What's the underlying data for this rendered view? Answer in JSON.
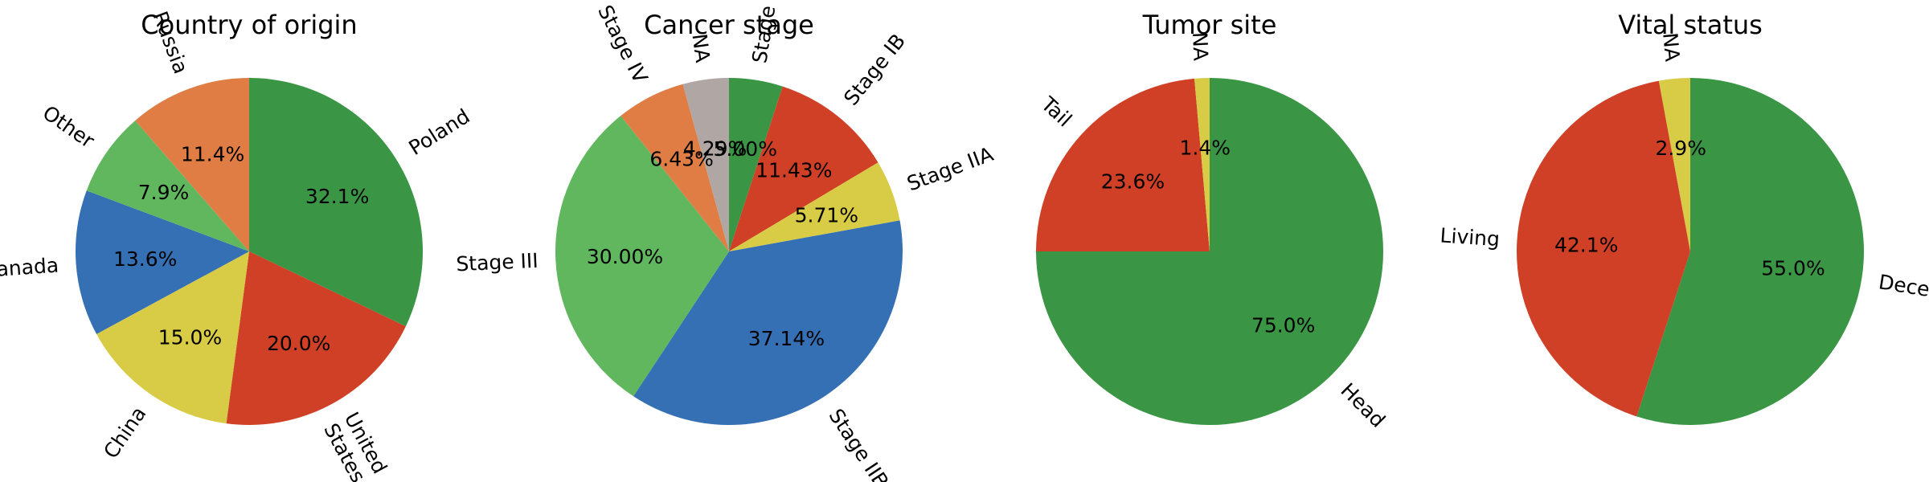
{
  "palette": {
    "green": "#3A9644",
    "red": "#CF4027",
    "blue": "#3570B4",
    "yellow": "#D8CB45",
    "lightgreen": "#60B75E",
    "orange": "#DF7D44",
    "gray": "#B0A6A3"
  },
  "chart_data": [
    {
      "type": "pie",
      "title": "Country of origin",
      "start_angle_deg": 90,
      "direction": "clockwise",
      "label_rotation": "radial",
      "slices": [
        {
          "label": "Poland",
          "value": 32.1,
          "pct_text": "32.1%",
          "color": "green"
        },
        {
          "label": "United\nStates",
          "value": 20.0,
          "pct_text": "20.0%",
          "color": "red"
        },
        {
          "label": "China",
          "value": 15.0,
          "pct_text": "15.0%",
          "color": "yellow"
        },
        {
          "label": "Canada",
          "value": 13.6,
          "pct_text": "13.6%",
          "color": "blue"
        },
        {
          "label": "Other",
          "value": 7.9,
          "pct_text": "7.9%",
          "color": "lightgreen"
        },
        {
          "label": "Russia",
          "value": 11.4,
          "pct_text": "11.4%",
          "color": "orange"
        }
      ]
    },
    {
      "type": "pie",
      "title": "Cancer stage",
      "start_angle_deg": 90,
      "direction": "clockwise",
      "label_rotation": "radial",
      "slices": [
        {
          "label": "Stage IA",
          "value": 5.0,
          "pct_text": "5.00%",
          "color": "green"
        },
        {
          "label": "Stage IB",
          "value": 11.43,
          "pct_text": "11.43%",
          "color": "red"
        },
        {
          "label": "Stage IIA",
          "value": 5.71,
          "pct_text": "5.71%",
          "color": "yellow"
        },
        {
          "label": "Stage IIB",
          "value": 37.14,
          "pct_text": "37.14%",
          "color": "blue"
        },
        {
          "label": "Stage III",
          "value": 30.0,
          "pct_text": "30.00%",
          "color": "lightgreen"
        },
        {
          "label": "Stage IV",
          "value": 6.43,
          "pct_text": "6.43%",
          "color": "orange"
        },
        {
          "label": "NA",
          "value": 4.29,
          "pct_text": "4.29%",
          "color": "gray"
        }
      ]
    },
    {
      "type": "pie",
      "title": "Tumor site",
      "start_angle_deg": 90,
      "direction": "clockwise",
      "label_rotation": "radial",
      "slices": [
        {
          "label": "Head",
          "value": 75.0,
          "pct_text": "75.0%",
          "color": "green"
        },
        {
          "label": "Tail",
          "value": 23.6,
          "pct_text": "23.6%",
          "color": "red"
        },
        {
          "label": "NA",
          "value": 1.4,
          "pct_text": "1.4%",
          "color": "yellow"
        }
      ]
    },
    {
      "type": "pie",
      "title": "Vital status",
      "start_angle_deg": 90,
      "direction": "clockwise",
      "label_rotation": "radial",
      "slices": [
        {
          "label": "Deceased",
          "value": 55.0,
          "pct_text": "55.0%",
          "color": "green"
        },
        {
          "label": "Living",
          "value": 42.1,
          "pct_text": "42.1%",
          "color": "red"
        },
        {
          "label": "NA",
          "value": 2.9,
          "pct_text": "2.9%",
          "color": "yellow"
        }
      ]
    }
  ]
}
